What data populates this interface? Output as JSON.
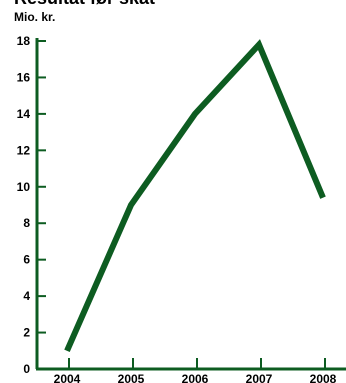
{
  "chart_data": {
    "type": "line",
    "title": "Resultat før skat",
    "ylabel": "Mio. kr.",
    "xlabel": "",
    "categories": [
      "2004",
      "2005",
      "2006",
      "2007",
      "2008"
    ],
    "x_tick_labels": [
      "2004",
      "2005",
      "2006",
      "2007",
      "2008"
    ],
    "y_tick_labels": [
      "0",
      "2",
      "4",
      "6",
      "8",
      "10",
      "12",
      "14",
      "16",
      "18"
    ],
    "series": [
      {
        "values": [
          1.0,
          9.0,
          14.0,
          17.8,
          9.4
        ]
      }
    ],
    "ylim": [
      0,
      18
    ],
    "grid": false,
    "line_color": "#0d5c21"
  }
}
